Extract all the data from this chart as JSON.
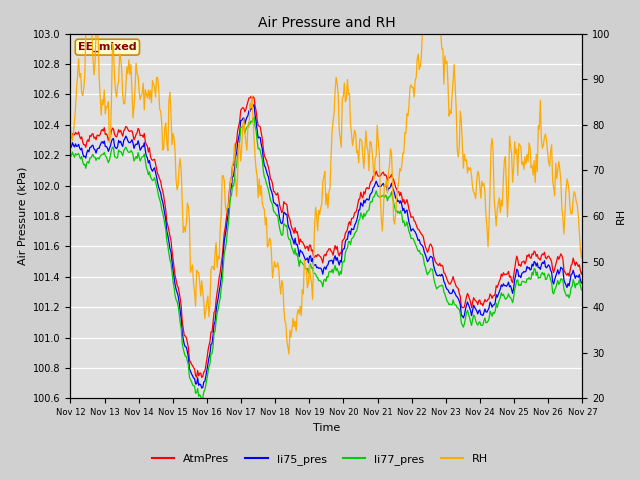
{
  "title": "Air Pressure and RH",
  "xlabel": "Time",
  "ylabel_left": "Air Pressure (kPa)",
  "ylabel_right": "RH",
  "ylim_left": [
    100.6,
    103.0
  ],
  "ylim_right": [
    20,
    100
  ],
  "yticks_left": [
    100.6,
    100.8,
    101.0,
    101.2,
    101.4,
    101.6,
    101.8,
    102.0,
    102.2,
    102.4,
    102.6,
    102.8,
    103.0
  ],
  "yticks_right": [
    20,
    30,
    40,
    50,
    60,
    70,
    80,
    90,
    100
  ],
  "xtick_labels": [
    "Nov 12",
    "Nov 13",
    "Nov 14",
    "Nov 15",
    "Nov 16",
    "Nov 17",
    "Nov 18",
    "Nov 19",
    "Nov 20",
    "Nov 21",
    "Nov 22",
    "Nov 23",
    "Nov 24",
    "Nov 25",
    "Nov 26",
    "Nov 27"
  ],
  "colors": {
    "AtmPres": "#ff0000",
    "li75_pres": "#0000ff",
    "li77_pres": "#00cc00",
    "RH": "#ffaa00"
  },
  "annotation_text": "EE_mixed",
  "annotation_color_text": "#880000",
  "annotation_color_bg": "#ffffcc",
  "annotation_color_border": "#cc8800",
  "fig_facecolor": "#d0d0d0",
  "plot_facecolor": "#e0e0e0",
  "grid_color": "#ffffff",
  "n_points": 500,
  "seed": 42
}
